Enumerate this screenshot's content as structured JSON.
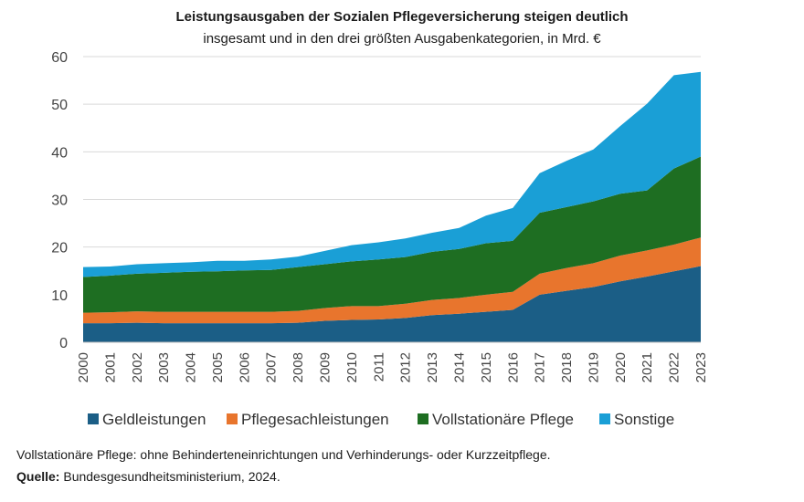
{
  "chart_data": {
    "type": "area",
    "stacked": true,
    "title": "Leistungsausgaben der Sozialen Pflegeversicherung steigen deutlich",
    "subtitle": "insgesamt und in den drei größten Ausgabenkategorien, in Mrd. €",
    "x": [
      "2000",
      "2001",
      "2002",
      "2003",
      "2004",
      "2005",
      "2006",
      "2007",
      "2008",
      "2009",
      "2010",
      "2011",
      "2012",
      "2013",
      "2014",
      "2015",
      "2016",
      "2017",
      "2018",
      "2019",
      "2020",
      "2021",
      "2022",
      "2023"
    ],
    "ylim": [
      0,
      60
    ],
    "yticks": [
      0,
      10,
      20,
      30,
      40,
      50,
      60
    ],
    "grid": true,
    "legend_position": "bottom",
    "series": [
      {
        "name": "Geldleistungen",
        "color": "#1b5e86",
        "values": [
          4.0,
          4.0,
          4.1,
          4.0,
          4.0,
          4.0,
          4.0,
          4.0,
          4.1,
          4.5,
          4.7,
          4.8,
          5.1,
          5.7,
          6.0,
          6.4,
          6.8,
          10.0,
          10.8,
          11.6,
          12.8,
          13.8,
          14.9,
          16.0
        ]
      },
      {
        "name": "Pflegesachleistungen",
        "color": "#e8752d",
        "values": [
          2.2,
          2.3,
          2.4,
          2.4,
          2.4,
          2.4,
          2.4,
          2.4,
          2.5,
          2.7,
          2.9,
          2.8,
          3.0,
          3.2,
          3.3,
          3.6,
          3.8,
          4.4,
          4.8,
          5.0,
          5.4,
          5.5,
          5.6,
          6.0
        ]
      },
      {
        "name": "Vollstationäre Pflege",
        "color": "#1e6e22",
        "values": [
          7.5,
          7.7,
          7.9,
          8.2,
          8.4,
          8.5,
          8.7,
          8.8,
          9.2,
          9.2,
          9.4,
          9.8,
          9.8,
          10.1,
          10.3,
          10.8,
          10.7,
          12.8,
          12.8,
          13.0,
          13.0,
          12.6,
          16.0,
          17.0
        ]
      },
      {
        "name": "Sonstige",
        "color": "#1a9fd6",
        "values": [
          2.1,
          1.9,
          2.0,
          2.0,
          2.0,
          2.2,
          2.0,
          2.2,
          2.2,
          2.8,
          3.4,
          3.6,
          3.9,
          4.0,
          4.4,
          5.8,
          6.9,
          8.3,
          9.7,
          10.9,
          14.2,
          18.2,
          19.6,
          17.8
        ]
      }
    ]
  },
  "footnote": "Vollstationäre Pflege: ohne Behinderteneinrichtungen und Verhinderungs- oder Kurzzeitpflege.",
  "source": {
    "label": "Quelle:",
    "text": "Bundesgesundheitsministerium, 2024."
  }
}
